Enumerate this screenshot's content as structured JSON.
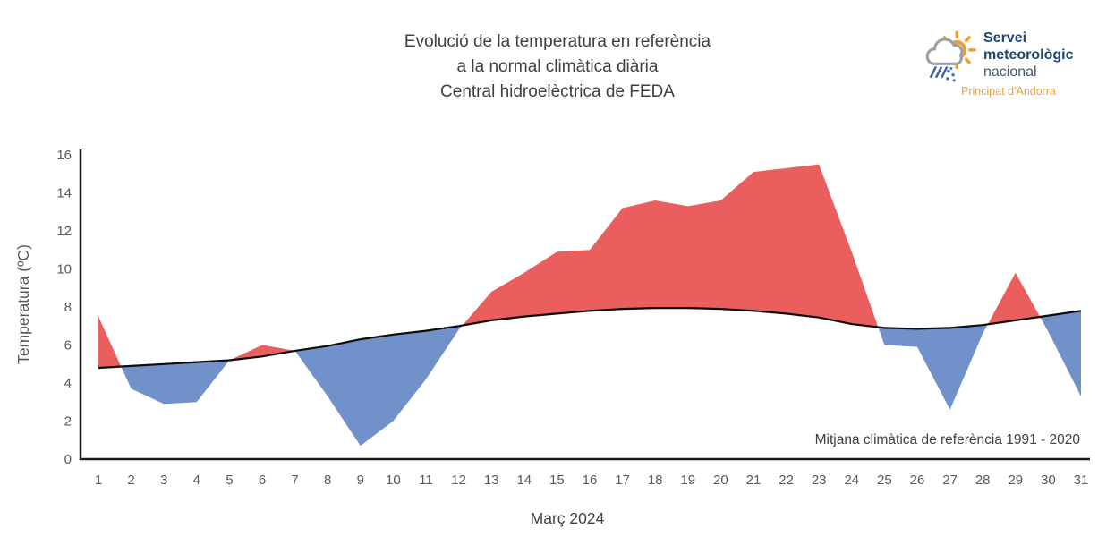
{
  "header": {
    "title_lines": [
      "Evolució de la temperatura en referència",
      "a la normal climàtica diària",
      "Central hidroelèctrica de FEDA"
    ]
  },
  "logo": {
    "line1": "Servei",
    "line2": "meteorològic",
    "line3": "nacional",
    "subtitle": "Principat d'Andorra",
    "icon": "sun-cloud-rain-icon",
    "colors": {
      "brand_blue": "#1f4573",
      "gray_blue": "#44546a",
      "orange": "#e8a23c"
    }
  },
  "chart_data": {
    "type": "area",
    "x_axis_label": "Març 2024",
    "y_axis_label": "Temperatura (ºC)",
    "annotation": "Mitjana climàtica de referència 1991 - 2020",
    "days": [
      1,
      2,
      3,
      4,
      5,
      6,
      7,
      8,
      9,
      10,
      11,
      12,
      13,
      14,
      15,
      16,
      17,
      18,
      19,
      20,
      21,
      22,
      23,
      24,
      25,
      26,
      27,
      28,
      29,
      30,
      31
    ],
    "series": [
      {
        "name": "temperatura-diaria-observada",
        "values": [
          7.5,
          3.7,
          2.9,
          3.0,
          5.2,
          6.0,
          5.7,
          3.3,
          0.7,
          2.0,
          4.2,
          6.8,
          8.8,
          9.8,
          10.9,
          11.0,
          13.2,
          13.6,
          13.3,
          13.6,
          15.1,
          15.3,
          15.5,
          10.9,
          6.0,
          5.9,
          2.6,
          6.6,
          9.8,
          6.7,
          3.3
        ]
      },
      {
        "name": "normal-climatica-1991-2020",
        "values": [
          4.8,
          4.9,
          5.0,
          5.1,
          5.2,
          5.4,
          5.7,
          5.95,
          6.3,
          6.55,
          6.75,
          7.0,
          7.3,
          7.5,
          7.65,
          7.8,
          7.9,
          7.95,
          7.95,
          7.9,
          7.8,
          7.65,
          7.45,
          7.1,
          6.9,
          6.85,
          6.9,
          7.05,
          7.3,
          7.55,
          7.8
        ]
      }
    ],
    "ylim": [
      0,
      16
    ],
    "y_ticks": [
      0,
      2,
      4,
      6,
      8,
      10,
      12,
      14,
      16
    ],
    "colors": {
      "above_normal": "#ea5e5e",
      "below_normal": "#7191cb",
      "normal_line": "#0d0d0d",
      "axis": "#1a1a1a",
      "tick_text": "#595959"
    },
    "legend": "none",
    "grid": false
  }
}
